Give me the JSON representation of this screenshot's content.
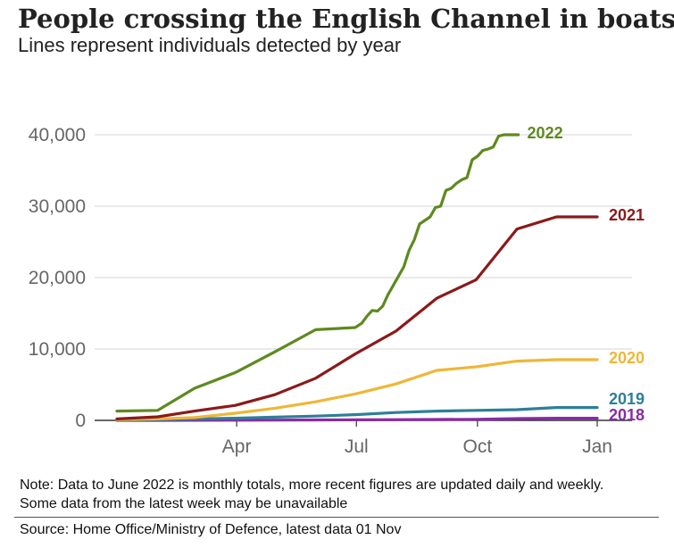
{
  "header": {
    "title": "People crossing the English Channel in boats",
    "subtitle": "Lines represent individuals detected by year"
  },
  "footer": {
    "note": "Note: Data to June 2022 is monthly totals, more recent figures are updated daily and weekly. Some data from the latest week may be unavailable",
    "source": "Source: Home Office/Ministry of Defence, latest data 01 Nov"
  },
  "colors": {
    "2022": "#5d8a1e",
    "2021": "#8b1a1a",
    "2020": "#eeb738",
    "2019": "#2d7f98",
    "2018": "#8a2aa6",
    "grid": "#d4d4d4",
    "axis": "#333333",
    "tick_text": "#666666"
  },
  "chart_data": {
    "type": "line",
    "title": "People crossing the English Channel in boats",
    "subtitle": "Lines represent individuals detected by year",
    "xlabel": "",
    "ylabel": "",
    "x_unit": "day of year",
    "xlim": [
      0,
      365
    ],
    "ylim": [
      0,
      40000
    ],
    "y_ticks": [
      0,
      10000,
      20000,
      30000,
      40000
    ],
    "y_tick_labels": [
      "0",
      "10,000",
      "20,000",
      "30,000",
      "40,000"
    ],
    "x_ticks": [
      {
        "day": 91,
        "label": "Apr"
      },
      {
        "day": 182,
        "label": "Jul"
      },
      {
        "day": 274,
        "label": "Oct"
      },
      {
        "day": 365,
        "label": "Jan"
      }
    ],
    "grid": true,
    "legend": "inline labels at line ends",
    "series": [
      {
        "name": "2022",
        "x": [
          0,
          31,
          59,
          90,
          120,
          151,
          181,
          186,
          190,
          194,
          198,
          202,
          206,
          210,
          214,
          218,
          222,
          226,
          230,
          234,
          238,
          242,
          246,
          250,
          254,
          258,
          262,
          266,
          270,
          274,
          278,
          282,
          286,
          290,
          294,
          298,
          302,
          305
        ],
        "values": [
          1300,
          1400,
          4500,
          6700,
          9600,
          12700,
          13000,
          13600,
          14600,
          15400,
          15300,
          16000,
          17600,
          18900,
          20200,
          21500,
          23800,
          25300,
          27500,
          28000,
          28500,
          29800,
          30000,
          32200,
          32500,
          33200,
          33700,
          34000,
          36500,
          37000,
          37800,
          38000,
          38300,
          39800,
          40000,
          40000,
          40000,
          40000
        ]
      },
      {
        "name": "2021",
        "x": [
          0,
          31,
          59,
          90,
          120,
          151,
          181,
          212,
          243,
          273,
          304,
          334,
          365
        ],
        "values": [
          200,
          500,
          1300,
          2100,
          3600,
          5900,
          9300,
          12500,
          17100,
          19700,
          26800,
          28500,
          28500
        ]
      },
      {
        "name": "2020",
        "x": [
          0,
          31,
          59,
          90,
          120,
          151,
          181,
          212,
          243,
          273,
          304,
          334,
          365
        ],
        "values": [
          100,
          200,
          400,
          1000,
          1700,
          2600,
          3700,
          5100,
          7000,
          7500,
          8300,
          8500,
          8500
        ]
      },
      {
        "name": "2019",
        "x": [
          0,
          31,
          59,
          90,
          120,
          151,
          181,
          212,
          243,
          273,
          304,
          334,
          365
        ],
        "values": [
          50,
          100,
          200,
          300,
          450,
          600,
          800,
          1100,
          1300,
          1400,
          1500,
          1800,
          1800
        ]
      },
      {
        "name": "2018",
        "x": [
          0,
          31,
          59,
          90,
          120,
          151,
          181,
          212,
          243,
          273,
          304,
          334,
          365
        ],
        "values": [
          0,
          0,
          10,
          20,
          40,
          60,
          80,
          100,
          120,
          150,
          250,
          300,
          300
        ]
      }
    ]
  }
}
